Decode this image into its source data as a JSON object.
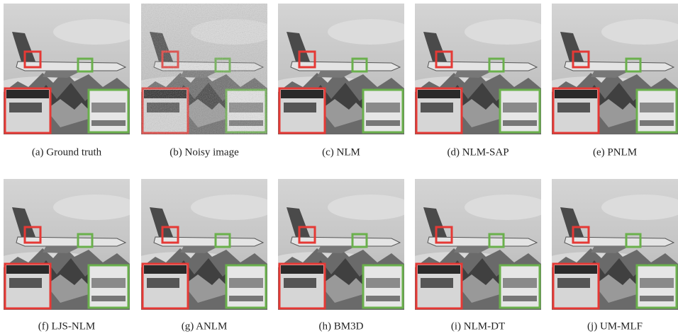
{
  "panels": [
    {
      "caption": "(a) Ground truth"
    },
    {
      "caption": "(b) Noisy image"
    },
    {
      "caption": "(c) NLM"
    },
    {
      "caption": "(d) NLM-SAP"
    },
    {
      "caption": "(e) PNLM"
    },
    {
      "caption": "(f) LJS-NLM"
    },
    {
      "caption": "(g) ANLM"
    },
    {
      "caption": "(h) BM3D"
    },
    {
      "caption": "(i) NLM-DT"
    },
    {
      "caption": "(j) UM-MLF"
    }
  ]
}
